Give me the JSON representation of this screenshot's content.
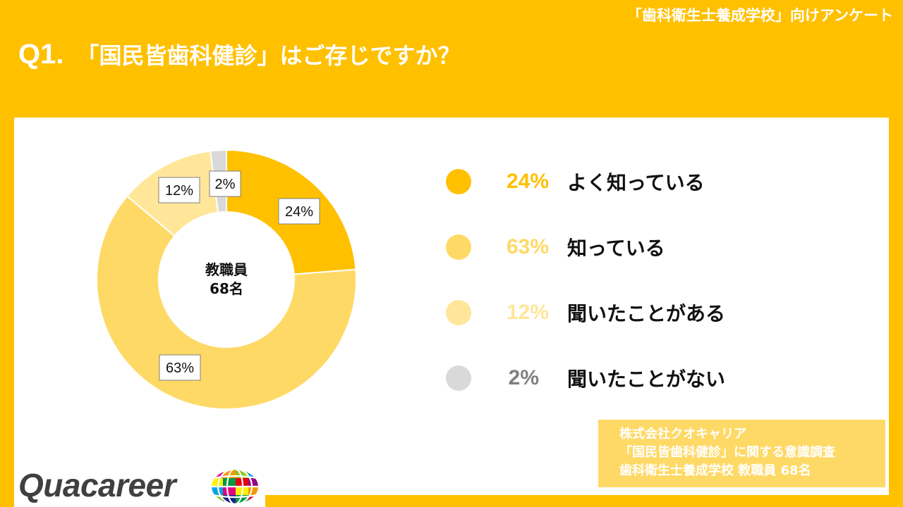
{
  "header": {
    "top_note": "「歯科衛生士養成学校」向けアンケート",
    "question_number": "Q1.",
    "question_text": "「国民皆歯科健診」はご存じですか？"
  },
  "chart_data": {
    "type": "pie",
    "variant": "donut",
    "center_label": [
      "教職員",
      "68名"
    ],
    "legend_placement": "right",
    "slices": [
      {
        "label": "よく知っている",
        "value": 24,
        "display": "24%",
        "color": "#FFC000"
      },
      {
        "label": "知っている",
        "value": 63,
        "display": "63%",
        "color": "#FFD966"
      },
      {
        "label": "聞いたことがある",
        "value": 12,
        "display": "12%",
        "color": "#FFE699"
      },
      {
        "label": "聞いたことがない",
        "value": 2,
        "display": "2%",
        "color": "#D9D9D9",
        "legend_text_color": "#808080"
      }
    ]
  },
  "source_box": {
    "lines": [
      "株式会社クオキャリア",
      "「国民皆歯科健診」に関する意識調査",
      "歯科衛生士養成学校 教職員 68名"
    ]
  },
  "logo": {
    "text": "Quacareer",
    "icon": "globe-logo-icon"
  }
}
